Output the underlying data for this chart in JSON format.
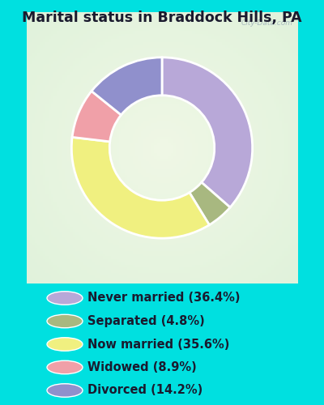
{
  "title": "Marital status in Braddock Hills, PA",
  "title_color": "#1a1a2e",
  "segments": [
    {
      "label": "Never married (36.4%)",
      "value": 36.4,
      "color": "#b8a8d8"
    },
    {
      "label": "Separated (4.8%)",
      "value": 4.8,
      "color": "#a8b880"
    },
    {
      "label": "Now married (35.6%)",
      "value": 35.6,
      "color": "#f0f080"
    },
    {
      "label": "Widowed (8.9%)",
      "value": 8.9,
      "color": "#f0a0a8"
    },
    {
      "label": "Divorced (14.2%)",
      "value": 14.2,
      "color": "#9090cc"
    }
  ],
  "bg_outer": "#00e0e0",
  "bg_chart_center": "#e8f5e8",
  "bg_chart_edge": "#c8ecd8",
  "watermark": "City-Data.com",
  "donut_width": 0.42,
  "start_angle": 90,
  "legend_text_color": "#1a1a2e",
  "legend_fontsize": 10.5
}
